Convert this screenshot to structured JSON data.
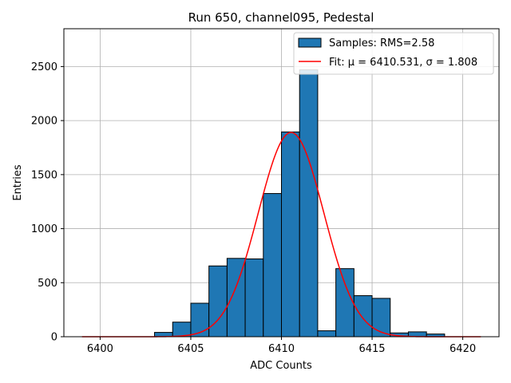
{
  "chart_data": {
    "type": "bar",
    "title": "Run 650, channel095, Pedestal",
    "xlabel": "ADC Counts",
    "ylabel": "Entries",
    "xlim": [
      6398,
      6422
    ],
    "ylim": [
      0,
      2850
    ],
    "xticks": [
      6400,
      6405,
      6410,
      6415,
      6420
    ],
    "yticks": [
      0,
      500,
      1000,
      1500,
      2000,
      2500
    ],
    "grid": true,
    "bar_color": "#1f77b4",
    "fit_color": "#ff0000",
    "bin_width": 1,
    "bins": [
      {
        "left": 6399,
        "value": 0
      },
      {
        "left": 6400,
        "value": 0
      },
      {
        "left": 6401,
        "value": 0
      },
      {
        "left": 6402,
        "value": 0
      },
      {
        "left": 6403,
        "value": 40
      },
      {
        "left": 6404,
        "value": 135
      },
      {
        "left": 6405,
        "value": 310
      },
      {
        "left": 6406,
        "value": 655
      },
      {
        "left": 6407,
        "value": 725
      },
      {
        "left": 6408,
        "value": 720
      },
      {
        "left": 6409,
        "value": 1325
      },
      {
        "left": 6410,
        "value": 1895
      },
      {
        "left": 6411,
        "value": 2470
      },
      {
        "left": 6412,
        "value": 55
      },
      {
        "left": 6413,
        "value": 630
      },
      {
        "left": 6414,
        "value": 380
      },
      {
        "left": 6415,
        "value": 355
      },
      {
        "left": 6416,
        "value": 35
      },
      {
        "left": 6417,
        "value": 45
      },
      {
        "left": 6418,
        "value": 25
      },
      {
        "left": 6419,
        "value": 0
      },
      {
        "left": 6420,
        "value": 0
      }
    ],
    "fit": {
      "mu": 6410.531,
      "sigma": 1.808,
      "amplitude": 1890,
      "x_range": [
        6399,
        6421
      ]
    },
    "legend": {
      "placement": "top-right",
      "entries": [
        {
          "label": "Samples: RMS=2.58",
          "kind": "patch"
        },
        {
          "label": "Fit: μ = 6410.531, σ = 1.808",
          "kind": "line"
        }
      ]
    }
  }
}
